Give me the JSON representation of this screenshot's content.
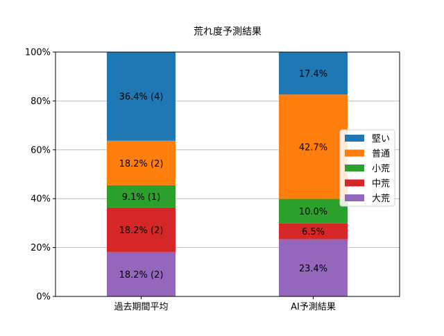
{
  "chart_data": {
    "type": "bar",
    "stacked": true,
    "title": "荒れ度予測結果",
    "xlabel": "",
    "ylabel": "",
    "ylim": [
      0,
      100
    ],
    "yticks": [
      "0%",
      "20%",
      "40%",
      "60%",
      "80%",
      "100%"
    ],
    "grid": "horizontal",
    "legend_placement": "center-right",
    "categories": [
      "過去期間平均",
      "AI予測結果"
    ],
    "series": [
      {
        "name": "大荒",
        "color": "#9467bd",
        "values": [
          18.2,
          23.4
        ],
        "labels": [
          "18.2% (2)",
          "23.4%"
        ]
      },
      {
        "name": "中荒",
        "color": "#d62728",
        "values": [
          18.2,
          6.5
        ],
        "labels": [
          "18.2% (2)",
          "6.5%"
        ]
      },
      {
        "name": "小荒",
        "color": "#2ca02c",
        "values": [
          9.1,
          10.0
        ],
        "labels": [
          "9.1% (1)",
          "10.0%"
        ]
      },
      {
        "name": "普通",
        "color": "#ff7f0e",
        "values": [
          18.2,
          42.7
        ],
        "labels": [
          "18.2% (2)",
          "42.7%"
        ]
      },
      {
        "name": "堅い",
        "color": "#1f77b4",
        "values": [
          36.4,
          17.4
        ],
        "labels": [
          "36.4% (4)",
          "17.4%"
        ]
      }
    ],
    "legend_order": [
      "堅い",
      "普通",
      "小荒",
      "中荒",
      "大荒"
    ]
  }
}
